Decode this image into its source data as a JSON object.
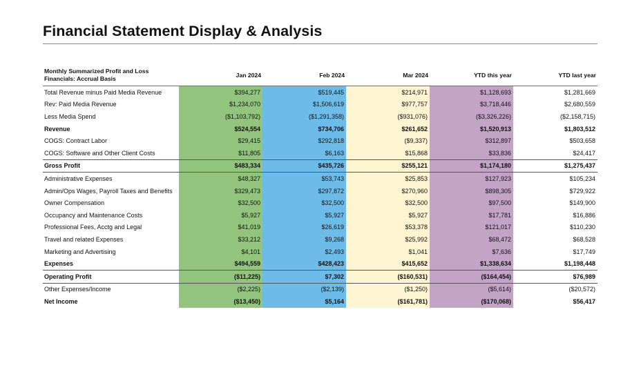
{
  "page_title": "Financial Statement Display & Analysis",
  "header": {
    "label_line1": "Monthly Summarized Profit and Loss",
    "label_line2": "Financials: Accrual Basis",
    "columns": [
      "Jan 2024",
      "Feb 2024",
      "Mar 2024",
      "YTD this year",
      "YTD last year"
    ]
  },
  "colors": {
    "jan": "#92c47d",
    "feb": "#6cbbe8",
    "mar": "#fdf4d2",
    "ytd_this_year": "#c3a3c6"
  },
  "rows": [
    {
      "label": "Total Revenue minus Paid Media Revenue",
      "values": [
        "$394,277",
        "$519,445",
        "$214,971",
        "$1,128,693",
        "$1,281,669"
      ]
    },
    {
      "label": "Rev: Paid Media Revenue",
      "values": [
        "$1,234,070",
        "$1,506,619",
        "$977,757",
        "$3,718,446",
        "$2,680,559"
      ]
    },
    {
      "label": "Less Media Spend",
      "values": [
        "($1,103,792)",
        "($1,291,358)",
        "($931,076)",
        "($3,326,226)",
        "($2,158,715)"
      ]
    },
    {
      "label": "Revenue",
      "values": [
        "$524,554",
        "$734,706",
        "$261,652",
        "$1,520,913",
        "$1,803,512"
      ]
    },
    {
      "label": "COGS: Contract Labor",
      "values": [
        "$29,415",
        "$292,818",
        "($9,337)",
        "$312,897",
        "$503,658"
      ]
    },
    {
      "label": "COGS: Software and Other Client Costs",
      "values": [
        "$11,805",
        "$6,163",
        "$15,868",
        "$33,836",
        "$24,417"
      ]
    },
    {
      "label": "Gross Profit",
      "values": [
        "$483,334",
        "$435,726",
        "$255,121",
        "$1,174,180",
        "$1,275,437"
      ]
    },
    {
      "label": "Administrative Expenses",
      "values": [
        "$48,327",
        "$53,743",
        "$25,853",
        "$127,923",
        "$105,234"
      ]
    },
    {
      "label": "Admin/Ops Wages, Payroll Taxes and Benefits",
      "values": [
        "$329,473",
        "$297,872",
        "$270,960",
        "$898,305",
        "$729,922"
      ]
    },
    {
      "label": "Owner Compensation",
      "values": [
        "$32,500",
        "$32,500",
        "$32,500",
        "$97,500",
        "$149,900"
      ]
    },
    {
      "label": "Occupancy and Maintenance Costs",
      "values": [
        "$5,927",
        "$5,927",
        "$5,927",
        "$17,781",
        "$16,886"
      ]
    },
    {
      "label": "Professional Fees, Acctg and Legal",
      "values": [
        "$41,019",
        "$26,619",
        "$53,378",
        "$121,017",
        "$110,230"
      ]
    },
    {
      "label": "Travel and related Expenses",
      "values": [
        "$33,212",
        "$9,268",
        "$25,992",
        "$68,472",
        "$68,528"
      ]
    },
    {
      "label": "Marketing and Advertising",
      "values": [
        "$4,101",
        "$2,493",
        "$1,041",
        "$7,636",
        "$17,749"
      ]
    },
    {
      "label": "Expenses",
      "values": [
        "$494,559",
        "$428,423",
        "$415,652",
        "$1,338,634",
        "$1,198,448"
      ]
    },
    {
      "label": "Operating Profit",
      "values": [
        "($11,225)",
        "$7,302",
        "($160,531)",
        "($164,454)",
        "$76,989"
      ]
    },
    {
      "label": "Other Expenses/Income",
      "values": [
        "($2,225)",
        "($2,139)",
        "($1,250)",
        "($5,614)",
        "($20,572)"
      ]
    },
    {
      "label": "Net Income",
      "values": [
        "($13,450)",
        "$5,164",
        "($161,781)",
        "($170,068)",
        "$56,417"
      ]
    }
  ]
}
